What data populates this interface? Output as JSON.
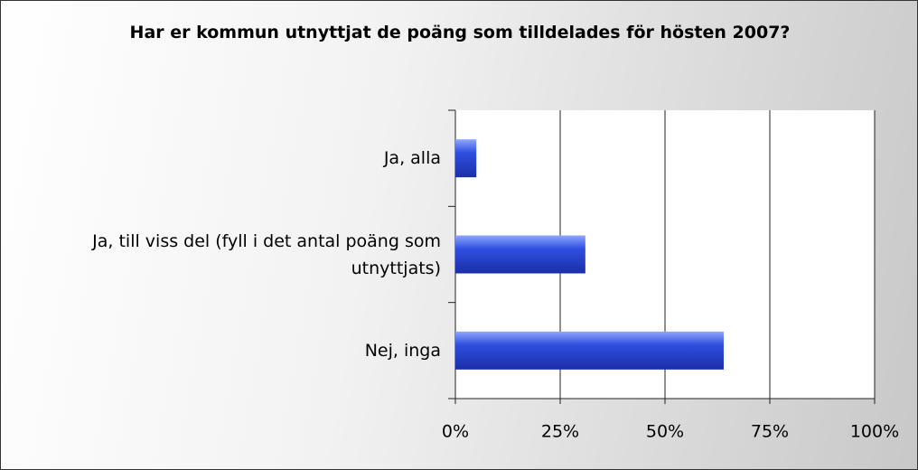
{
  "chart_data": {
    "type": "bar",
    "orientation": "horizontal",
    "title": "Har er kommun utnyttjat de poäng som tilldelades för hösten 2007?",
    "categories": [
      "Ja, alla",
      "Ja, till viss del (fyll i det antal poäng som utnyttjats)",
      "Nej, inga"
    ],
    "values": [
      5,
      31,
      64
    ],
    "color": "#2f4fe0",
    "xlim": [
      0,
      100
    ],
    "xticks": [
      {
        "value": 0,
        "label": "0%"
      },
      {
        "value": 25,
        "label": "25%"
      },
      {
        "value": 50,
        "label": "50%"
      },
      {
        "value": 75,
        "label": "75%"
      },
      {
        "value": 100,
        "label": "100%"
      }
    ],
    "grid": true
  }
}
